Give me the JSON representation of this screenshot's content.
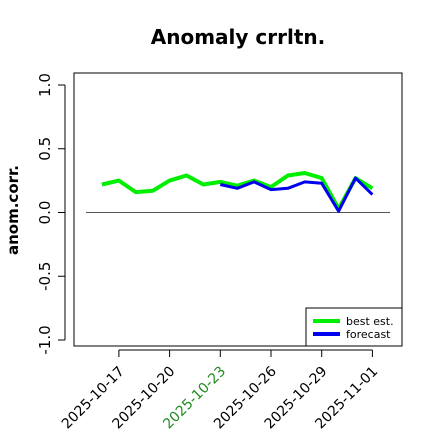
{
  "chart_data": {
    "type": "line",
    "title": "Anomaly crrltn.",
    "xlabel": "",
    "ylabel": "anom.corr.",
    "ylim": [
      -1.0,
      1.0
    ],
    "y_ticks": [
      "-1.0",
      "-0.5",
      "0.0",
      "0.5",
      "1.0"
    ],
    "y_tick_values": [
      -1.0,
      -0.5,
      0.0,
      0.5,
      1.0
    ],
    "x_ticks": [
      "2025-10-17",
      "2025-10-20",
      "2025-10-23",
      "2025-10-26",
      "2025-10-29",
      "2025-11-01"
    ],
    "x_tick_colors": [
      "#000000",
      "#000000",
      "#228B22",
      "#000000",
      "#000000",
      "#000000"
    ],
    "x": [
      "2025-10-16",
      "2025-10-17",
      "2025-10-18",
      "2025-10-19",
      "2025-10-20",
      "2025-10-21",
      "2025-10-22",
      "2025-10-23",
      "2025-10-24",
      "2025-10-25",
      "2025-10-26",
      "2025-10-27",
      "2025-10-28",
      "2025-10-29",
      "2025-10-30",
      "2025-10-31",
      "2025-11-01"
    ],
    "reference_line": 0.0,
    "grid": false,
    "legend_position": "bottom-right",
    "series": [
      {
        "name": "best est.",
        "color": "#00ee00",
        "values": [
          0.22,
          0.25,
          0.16,
          0.17,
          0.25,
          0.29,
          0.22,
          0.24,
          0.21,
          0.25,
          0.2,
          0.29,
          0.31,
          0.27,
          0.03,
          0.27,
          0.19
        ]
      },
      {
        "name": "forecast",
        "color": "#0000ee",
        "values": [
          null,
          null,
          null,
          null,
          null,
          null,
          null,
          0.22,
          0.19,
          0.24,
          0.18,
          0.19,
          0.24,
          0.23,
          0.01,
          0.27,
          0.14
        ]
      }
    ]
  }
}
